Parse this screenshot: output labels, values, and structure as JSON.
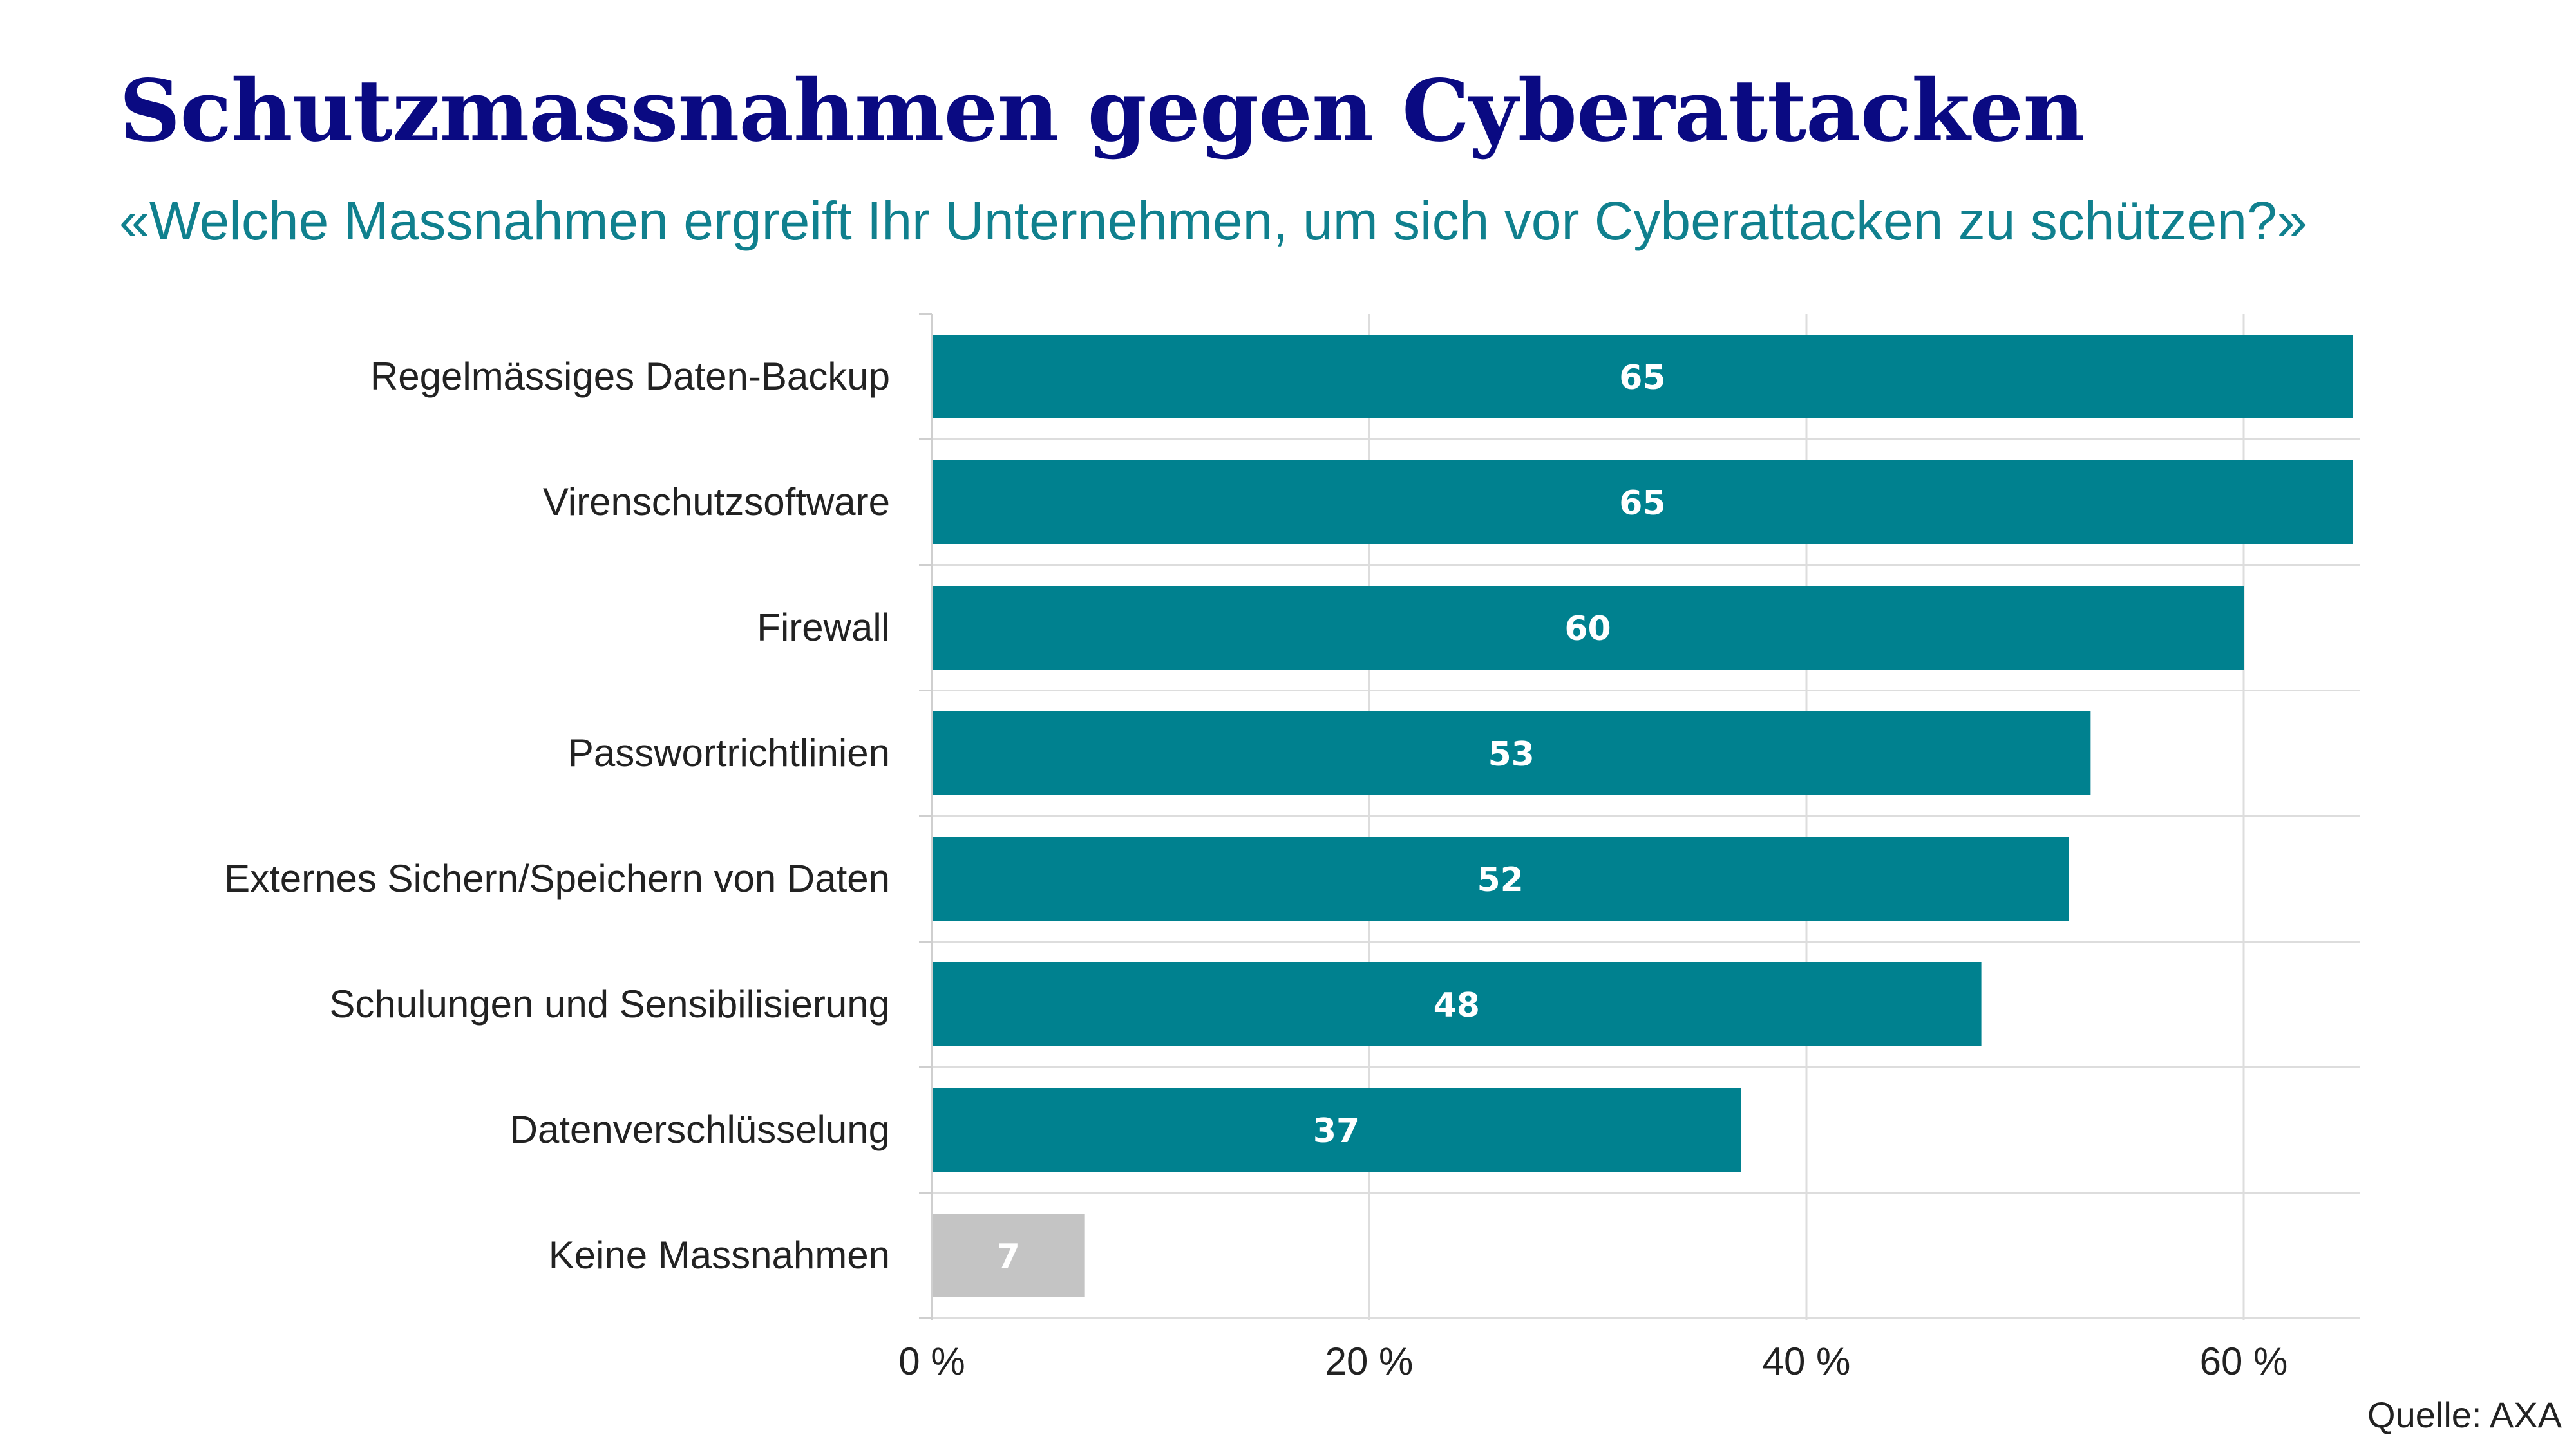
{
  "chart_data": {
    "type": "bar",
    "orientation": "horizontal",
    "title": "Schutzmassnahmen gegen Cyberattacken",
    "subtitle": "«Welche Massnahmen ergreift Ihr Unternehmen, um sich vor Cyberattacken zu schützen?»",
    "source": "Quelle: AXA",
    "categories": [
      "Regelmässiges Daten-Backup",
      "Virenschutzsoftware",
      "Firewall",
      "Passwortrichtlinien",
      "Externes Sichern/Speichern von Daten",
      "Schulungen und Sensibilisierung",
      "Datenverschlüsselung",
      "Keine Massnahmen"
    ],
    "values": [
      65,
      65,
      60,
      53,
      52,
      48,
      37,
      7
    ],
    "value_labels": [
      "65",
      "65",
      "60",
      "53",
      "52",
      "48",
      "37",
      "7"
    ],
    "xlim": [
      0,
      65
    ],
    "x_ticks": [
      0,
      20,
      40,
      60
    ],
    "x_tick_labels": [
      "0 %",
      "20 %",
      "40 %",
      "60 %"
    ],
    "grid": true,
    "colors": {
      "bar": "#00818f",
      "bar_highlight": "#c4c4c4",
      "title": "#0a0a82",
      "subtitle": "#10808e",
      "grid": "#dddddd"
    },
    "bar_colors": [
      "bar",
      "bar",
      "bar",
      "bar",
      "bar",
      "bar",
      "bar",
      "bar_highlight"
    ]
  }
}
